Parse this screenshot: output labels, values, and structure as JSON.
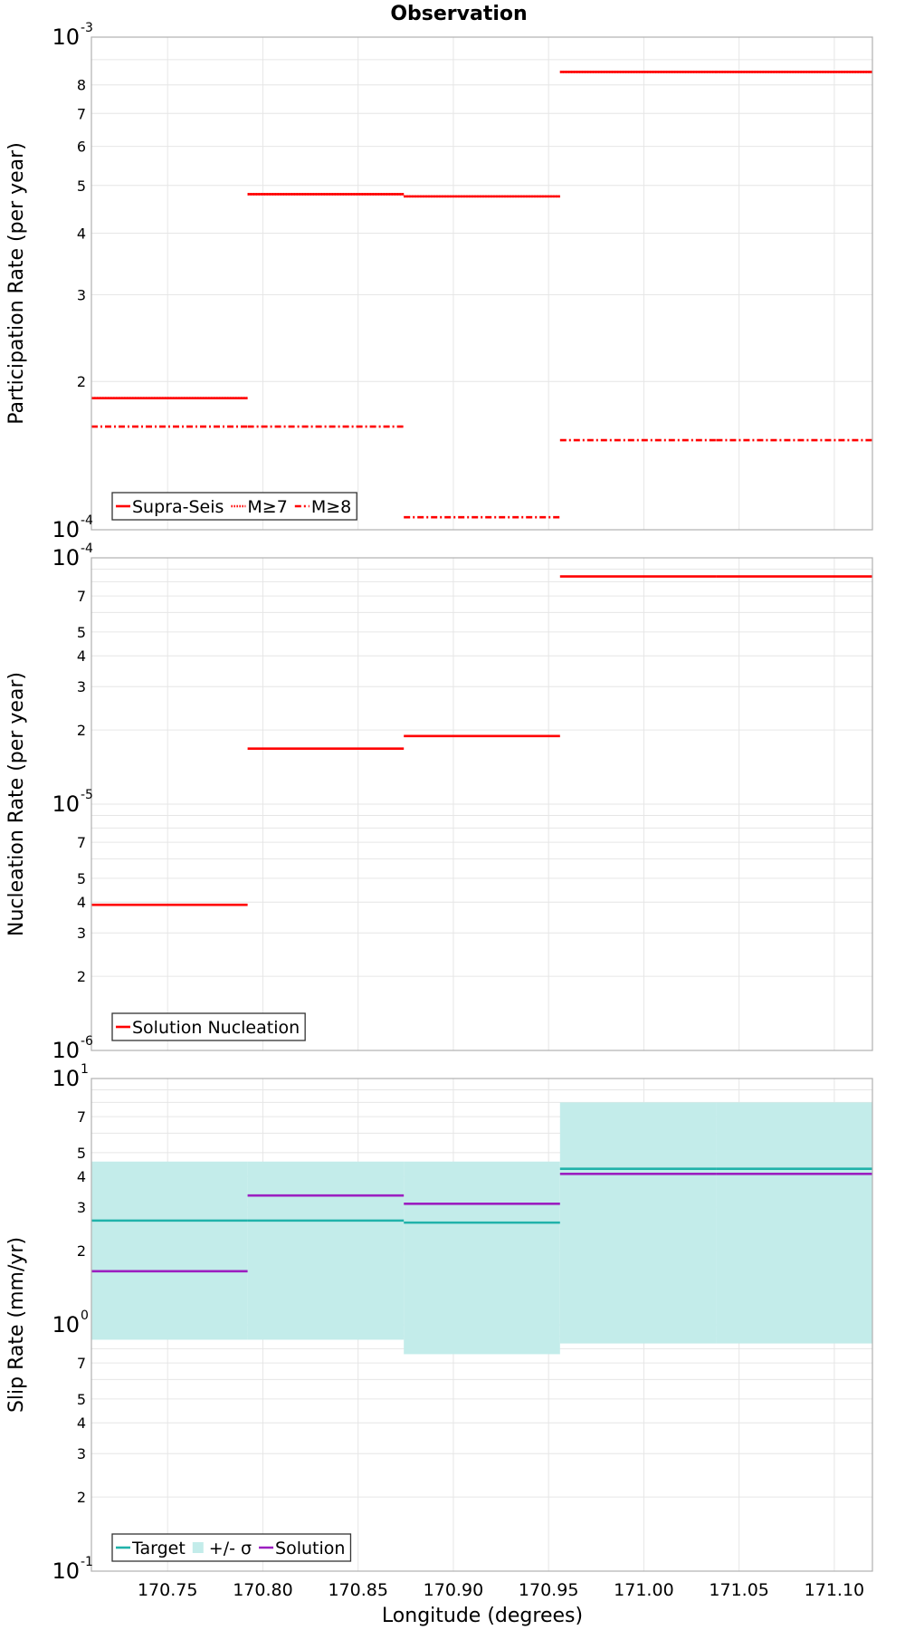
{
  "figure_title": "Observation",
  "x_axis": {
    "label": "Longitude (degrees)",
    "range": [
      170.71,
      171.12
    ],
    "ticks": [
      170.75,
      170.8,
      170.85,
      170.9,
      170.95,
      171.0,
      171.05,
      171.1
    ],
    "tick_labels": [
      "170.75",
      "170.80",
      "170.85",
      "170.90",
      "170.95",
      "171.00",
      "171.05",
      "171.10"
    ],
    "grid": true
  },
  "chart_data": [
    {
      "type": "line",
      "scale": "log",
      "ylabel": "Participation Rate (per year)",
      "ylim": [
        0.0001,
        0.001
      ],
      "grid": true,
      "decade_labels": [
        {
          "value": 0.0001,
          "base": "10",
          "exp": "-4"
        },
        {
          "value": 0.001,
          "base": "10",
          "exp": "-3"
        }
      ],
      "minor_labels": [
        {
          "value": 0.0002,
          "label": "2"
        },
        {
          "value": 0.0003,
          "label": "3"
        },
        {
          "value": 0.0004,
          "label": "4"
        },
        {
          "value": 0.0005,
          "label": "5"
        },
        {
          "value": 0.0006,
          "label": "6"
        },
        {
          "value": 0.0007,
          "label": "7"
        },
        {
          "value": 0.0008,
          "label": "8"
        }
      ],
      "legend_position": "bottom-left",
      "series": [
        {
          "name": "Supra-Seis",
          "style": "solid",
          "color": "#ff0000",
          "segments": [
            {
              "x0": 170.71,
              "x1": 170.792,
              "y": 0.000185
            },
            {
              "x0": 170.792,
              "x1": 170.874,
              "y": 0.00048
            },
            {
              "x0": 170.874,
              "x1": 170.956,
              "y": 0.000475
            },
            {
              "x0": 170.956,
              "x1": 171.038,
              "y": 0.00085
            },
            {
              "x0": 171.038,
              "x1": 171.12,
              "y": 0.00085
            }
          ]
        },
        {
          "name": "M≥7",
          "style": "dotted",
          "color": "#ff0000",
          "segments": [
            {
              "x0": 170.71,
              "x1": 170.792,
              "y": 0.000185
            },
            {
              "x0": 170.792,
              "x1": 170.874,
              "y": 0.00048
            },
            {
              "x0": 170.874,
              "x1": 170.956,
              "y": 0.000475
            },
            {
              "x0": 170.956,
              "x1": 171.038,
              "y": 0.00085
            },
            {
              "x0": 171.038,
              "x1": 171.12,
              "y": 0.00085
            }
          ]
        },
        {
          "name": "M≥8",
          "style": "dashdot",
          "color": "#ff0000",
          "segments": [
            {
              "x0": 170.71,
              "x1": 170.792,
              "y": 0.000162
            },
            {
              "x0": 170.792,
              "x1": 170.874,
              "y": 0.000162
            },
            {
              "x0": 170.874,
              "x1": 170.956,
              "y": 0.000106
            },
            {
              "x0": 170.956,
              "x1": 171.038,
              "y": 0.000152
            },
            {
              "x0": 171.038,
              "x1": 171.12,
              "y": 0.000152
            }
          ]
        }
      ]
    },
    {
      "type": "line",
      "scale": "log",
      "ylabel": "Nucleation Rate (per year)",
      "ylim": [
        1e-06,
        0.0001
      ],
      "grid": true,
      "decade_labels": [
        {
          "value": 1e-06,
          "base": "10",
          "exp": "-6"
        },
        {
          "value": 1e-05,
          "base": "10",
          "exp": "-5"
        },
        {
          "value": 0.0001,
          "base": "10",
          "exp": "-4"
        }
      ],
      "minor_labels": [
        {
          "value": 2e-06,
          "label": "2"
        },
        {
          "value": 3e-06,
          "label": "3"
        },
        {
          "value": 4e-06,
          "label": "4"
        },
        {
          "value": 5e-06,
          "label": "5"
        },
        {
          "value": 7e-06,
          "label": "7"
        },
        {
          "value": 2e-05,
          "label": "2"
        },
        {
          "value": 3e-05,
          "label": "3"
        },
        {
          "value": 4e-05,
          "label": "4"
        },
        {
          "value": 5e-05,
          "label": "5"
        },
        {
          "value": 7e-05,
          "label": "7"
        }
      ],
      "legend_position": "bottom-left",
      "series": [
        {
          "name": "Solution Nucleation",
          "style": "solid",
          "color": "#ff0000",
          "segments": [
            {
              "x0": 170.71,
              "x1": 170.792,
              "y": 3.9e-06
            },
            {
              "x0": 170.792,
              "x1": 170.874,
              "y": 1.68e-05
            },
            {
              "x0": 170.874,
              "x1": 170.956,
              "y": 1.89e-05
            },
            {
              "x0": 170.956,
              "x1": 171.038,
              "y": 8.4e-05
            },
            {
              "x0": 171.038,
              "x1": 171.12,
              "y": 8.4e-05
            }
          ]
        }
      ]
    },
    {
      "type": "line",
      "scale": "log",
      "ylabel": "Slip Rate (mm/yr)",
      "ylim": [
        0.1,
        10
      ],
      "grid": true,
      "decade_labels": [
        {
          "value": 0.1,
          "base": "10",
          "exp": "-1"
        },
        {
          "value": 1,
          "base": "10",
          "exp": "0"
        },
        {
          "value": 10,
          "base": "10",
          "exp": "1"
        }
      ],
      "minor_labels": [
        {
          "value": 0.2,
          "label": "2"
        },
        {
          "value": 0.3,
          "label": "3"
        },
        {
          "value": 0.4,
          "label": "4"
        },
        {
          "value": 0.5,
          "label": "5"
        },
        {
          "value": 0.7,
          "label": "7"
        },
        {
          "value": 2,
          "label": "2"
        },
        {
          "value": 3,
          "label": "3"
        },
        {
          "value": 4,
          "label": "4"
        },
        {
          "value": 5,
          "label": "5"
        },
        {
          "value": 7,
          "label": "7"
        }
      ],
      "legend_position": "bottom-left",
      "bands": [
        {
          "name": "+/- σ",
          "color": "#c3ecea",
          "segments": [
            {
              "x0": 170.71,
              "x1": 170.792,
              "y0": 0.87,
              "y1": 4.6
            },
            {
              "x0": 170.792,
              "x1": 170.874,
              "y0": 0.87,
              "y1": 4.6
            },
            {
              "x0": 170.874,
              "x1": 170.956,
              "y0": 0.76,
              "y1": 4.6
            },
            {
              "x0": 170.956,
              "x1": 171.038,
              "y0": 0.84,
              "y1": 8.0
            },
            {
              "x0": 171.038,
              "x1": 171.12,
              "y0": 0.84,
              "y1": 8.0
            }
          ]
        }
      ],
      "series": [
        {
          "name": "Target",
          "style": "solid",
          "color": "#20b2aa",
          "segments": [
            {
              "x0": 170.71,
              "x1": 170.792,
              "y": 2.65
            },
            {
              "x0": 170.792,
              "x1": 170.874,
              "y": 2.65
            },
            {
              "x0": 170.874,
              "x1": 170.956,
              "y": 2.6
            },
            {
              "x0": 170.956,
              "x1": 171.038,
              "y": 4.3
            },
            {
              "x0": 171.038,
              "x1": 171.12,
              "y": 4.3
            }
          ]
        },
        {
          "name": "Solution",
          "style": "solid",
          "color": "#9b1fc0",
          "segments": [
            {
              "x0": 170.71,
              "x1": 170.792,
              "y": 1.65
            },
            {
              "x0": 170.792,
              "x1": 170.874,
              "y": 3.35
            },
            {
              "x0": 170.874,
              "x1": 170.956,
              "y": 3.1
            },
            {
              "x0": 170.956,
              "x1": 171.038,
              "y": 4.1
            },
            {
              "x0": 171.038,
              "x1": 171.12,
              "y": 4.1
            }
          ]
        }
      ]
    }
  ]
}
